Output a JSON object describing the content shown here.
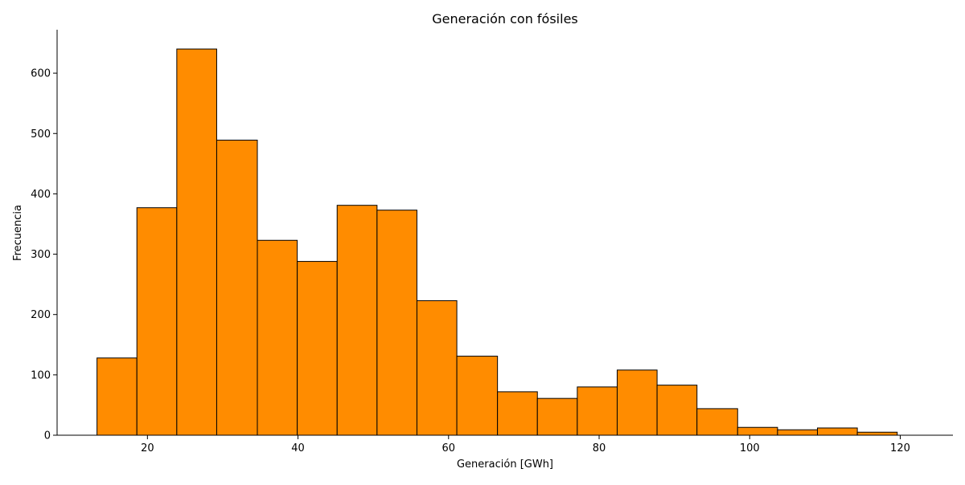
{
  "chart_data": {
    "type": "bar",
    "subtype": "histogram",
    "title": "Generación con fósiles",
    "xlabel": "Generación [GWh]",
    "ylabel": "Frecuencia",
    "xlim": [
      8,
      127
    ],
    "ylim": [
      0,
      672
    ],
    "xticks": [
      20,
      40,
      60,
      80,
      100,
      120
    ],
    "yticks": [
      0,
      100,
      200,
      300,
      400,
      500,
      600
    ],
    "bin_edges": [
      13.3,
      18.6,
      23.9,
      29.2,
      34.6,
      39.9,
      45.2,
      50.5,
      55.8,
      61.1,
      66.5,
      71.8,
      77.1,
      82.4,
      87.7,
      93.0,
      98.4,
      103.7,
      109.0,
      114.3,
      119.6
    ],
    "values": [
      128,
      377,
      640,
      489,
      323,
      288,
      381,
      373,
      223,
      131,
      72,
      61,
      80,
      108,
      83,
      44,
      13,
      9,
      12,
      5
    ],
    "bar_color": "#ff8c00",
    "edge_color": "#000000",
    "grid": false,
    "spines": [
      "left",
      "bottom"
    ]
  }
}
